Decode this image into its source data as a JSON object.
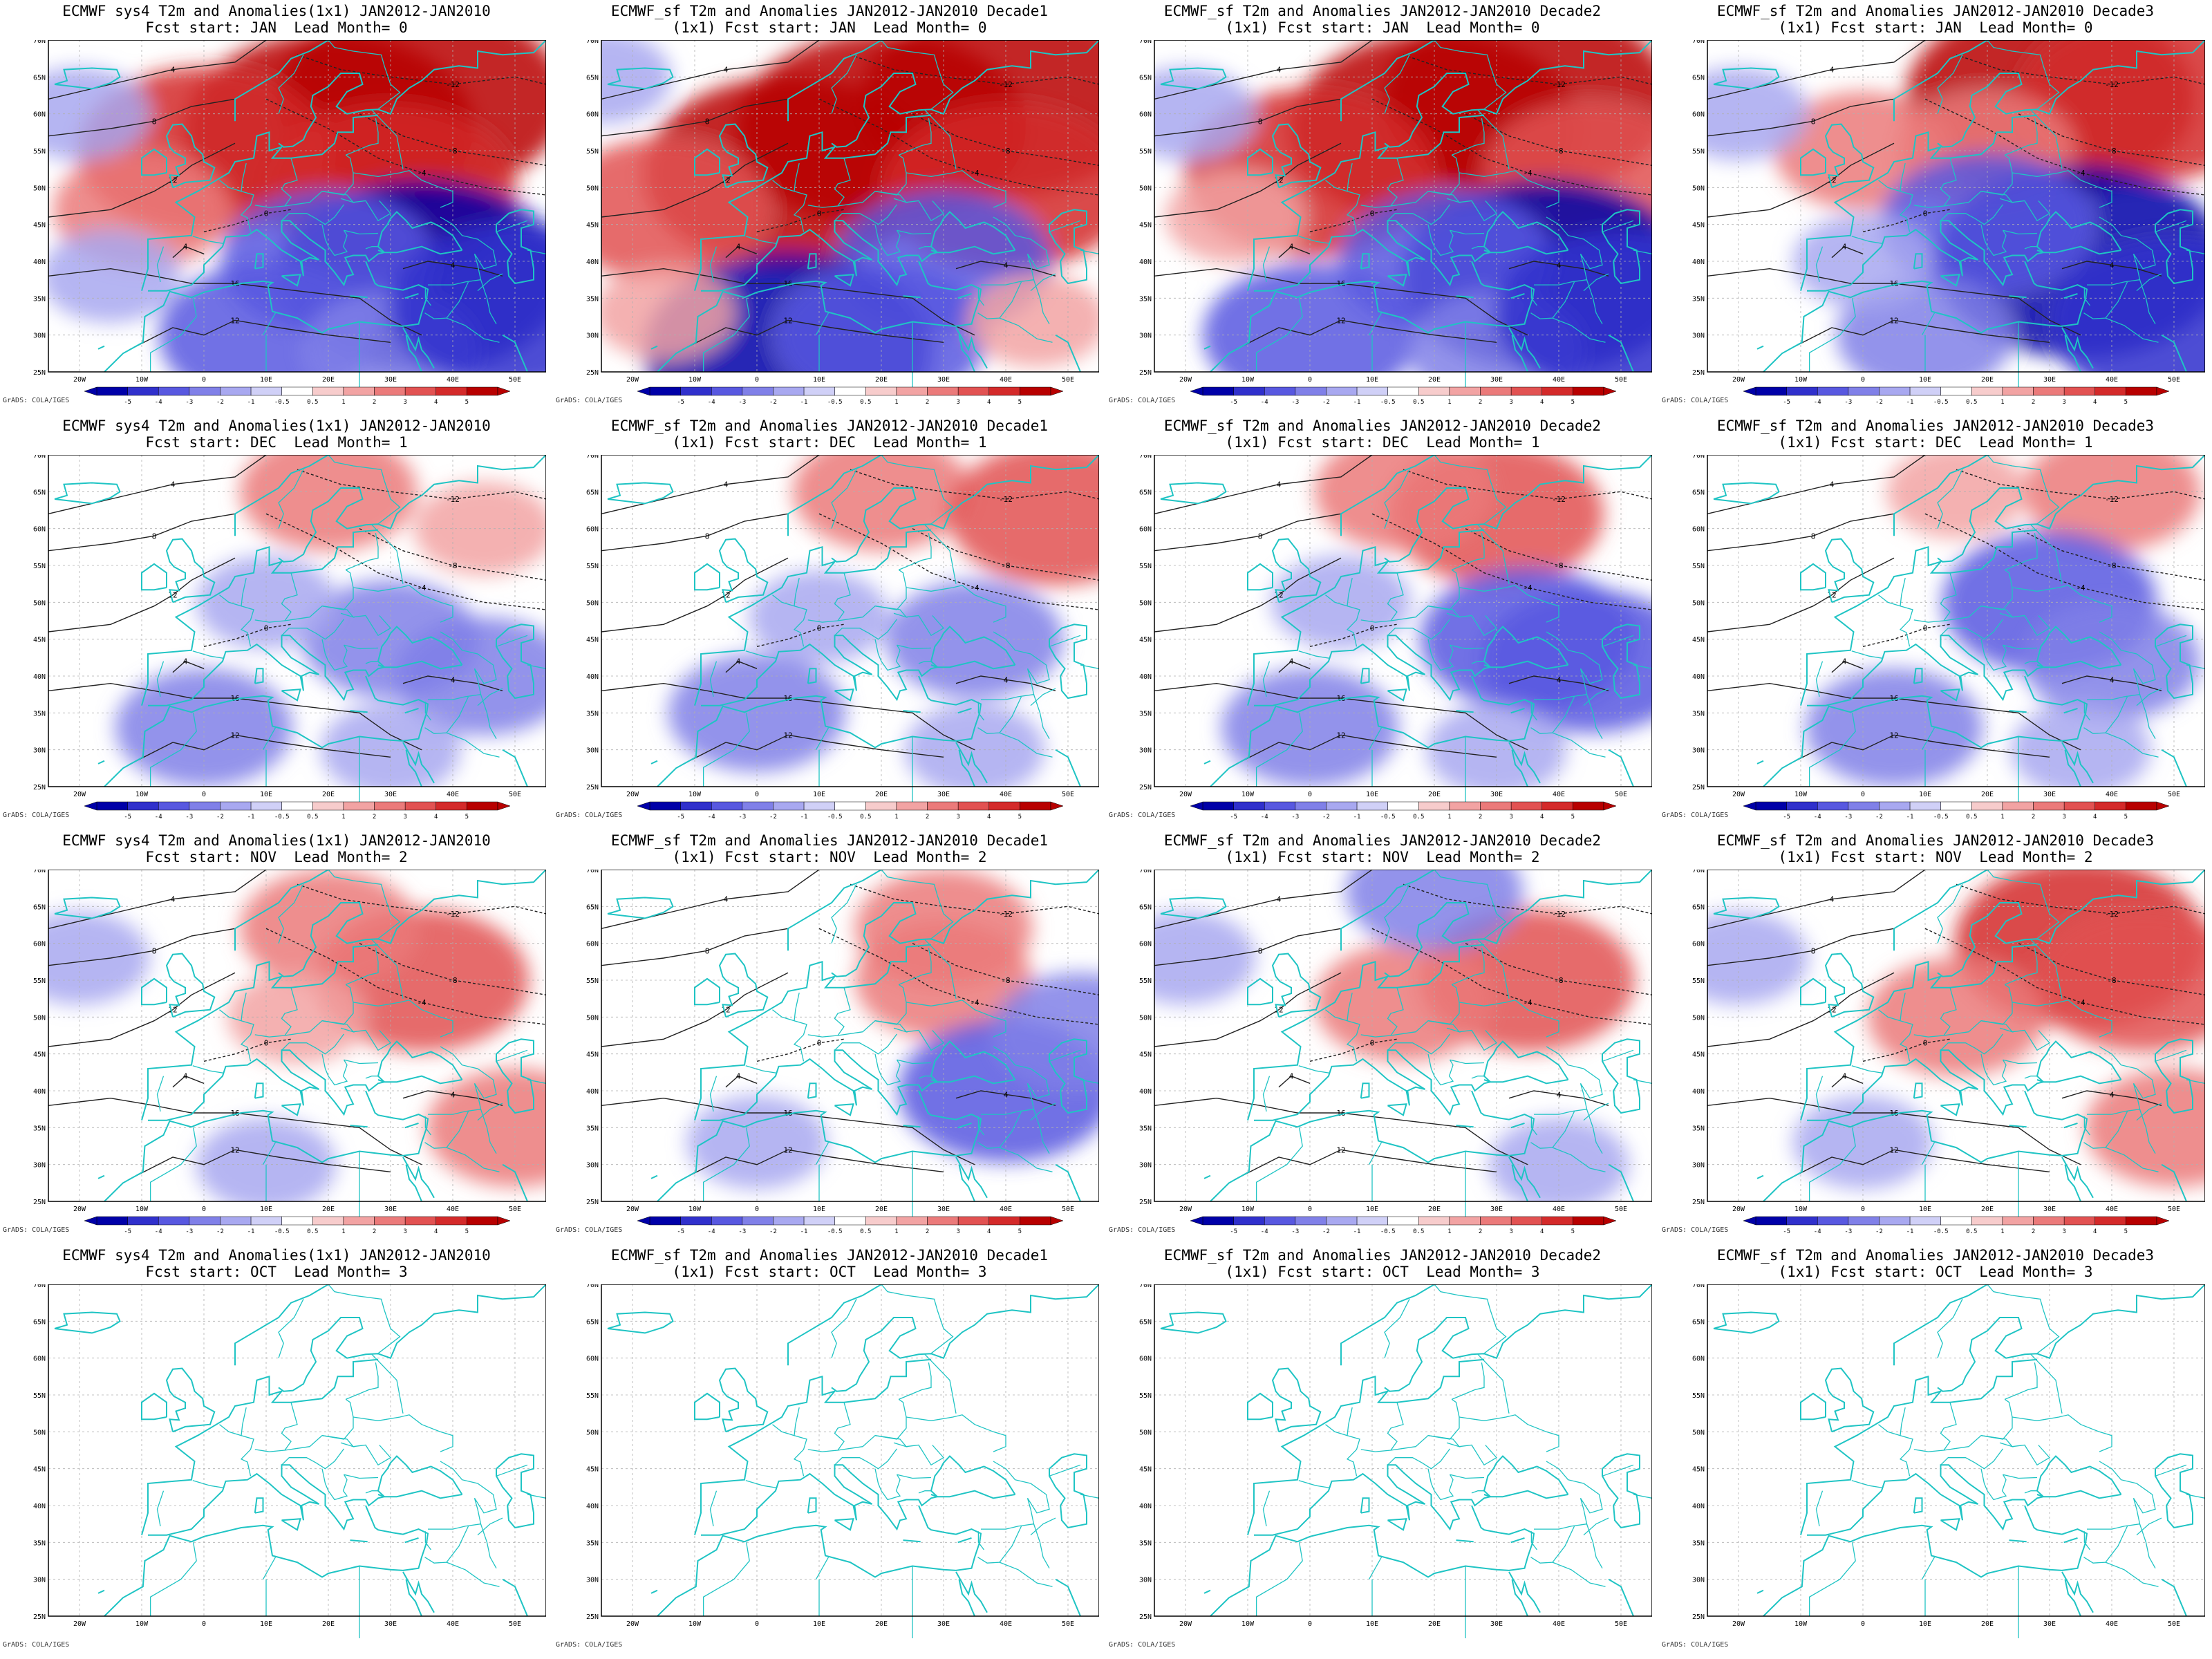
{
  "footer_text": "GrADS: COLA/IGES",
  "lat_labels": [
    "70N",
    "65N",
    "60N",
    "55N",
    "50N",
    "45N",
    "40N",
    "35N",
    "30N",
    "25N"
  ],
  "lon_labels": [
    "20W",
    "10W",
    "0",
    "10E",
    "20E",
    "30E",
    "40E",
    "50E"
  ],
  "colorbar_labels": [
    "-5",
    "-4",
    "-3",
    "-2",
    "-1",
    "-0.5",
    "0.5",
    "1",
    "2",
    "3",
    "4",
    "5"
  ],
  "colors": {
    "coast": "#1fc4c4",
    "contour": "#222222",
    "warm": [
      "#f7cccc",
      "#f2a3a3",
      "#eb7a7a",
      "#e25252",
      "#d42a2a",
      "#b80000"
    ],
    "cold": [
      "#d0d0f7",
      "#a8a8f0",
      "#8080e8",
      "#5858e0",
      "#3030cc",
      "#0000a8"
    ]
  },
  "columns": [
    {
      "line1": "ECMWF sys4 T2m and Anomalies(1x1) JAN2012-JAN2010",
      "line2_prefix": ""
    },
    {
      "line1": "ECMWF_sf T2m and Anomalies JAN2012-JAN2010 Decade1",
      "line2_prefix": "(1x1) "
    },
    {
      "line1": "ECMWF_sf T2m and Anomalies JAN2012-JAN2010 Decade2",
      "line2_prefix": "(1x1) "
    },
    {
      "line1": "ECMWF_sf T2m and Anomalies JAN2012-JAN2010 Decade3",
      "line2_prefix": "(1x1) "
    }
  ],
  "rows": [
    {
      "fcst_start": "JAN",
      "lead_month": "0",
      "has_data": true
    },
    {
      "fcst_start": "DEC",
      "lead_month": "1",
      "has_data": true
    },
    {
      "fcst_start": "NOV",
      "lead_month": "2",
      "has_data": true
    },
    {
      "fcst_start": "OCT",
      "lead_month": "3",
      "has_data": false
    }
  ],
  "panels": [
    {
      "line1": "ECMWF sys4 T2m and Anomalies(1x1) JAN2012-JAN2010",
      "line2": "Fcst start: JAN  Lead Month= 0",
      "anomalies": [
        {
          "lat": 58,
          "lon": 20,
          "v": 5
        },
        {
          "lat": 62,
          "lon": 35,
          "v": 5
        },
        {
          "lat": 55,
          "lon": 0,
          "v": 4
        },
        {
          "lat": 50,
          "lon": 30,
          "v": 4
        },
        {
          "lat": 47,
          "lon": -10,
          "v": 2
        },
        {
          "lat": 38,
          "lon": 35,
          "v": -5
        },
        {
          "lat": 40,
          "lon": 20,
          "v": -3
        },
        {
          "lat": 30,
          "lon": 10,
          "v": -3
        },
        {
          "lat": 28,
          "lon": 30,
          "v": -2
        },
        {
          "lat": 34,
          "lon": 50,
          "v": -4
        },
        {
          "lat": 38,
          "lon": -15,
          "v": -1
        },
        {
          "lat": 60,
          "lon": -20,
          "v": -1
        }
      ]
    },
    {
      "line1": "ECMWF_sf T2m and Anomalies JAN2012-JAN2010 Decade1",
      "line2": "(1x1) Fcst start: JAN  Lead Month= 0",
      "anomalies": [
        {
          "lat": 58,
          "lon": 20,
          "v": 5
        },
        {
          "lat": 62,
          "lon": 40,
          "v": 5
        },
        {
          "lat": 52,
          "lon": 5,
          "v": 5
        },
        {
          "lat": 47,
          "lon": -15,
          "v": 3
        },
        {
          "lat": 50,
          "lon": 40,
          "v": 4
        },
        {
          "lat": 40,
          "lon": 30,
          "v": -3
        },
        {
          "lat": 28,
          "lon": 5,
          "v": -5
        },
        {
          "lat": 30,
          "lon": 20,
          "v": -3
        },
        {
          "lat": 32,
          "lon": 45,
          "v": 1
        },
        {
          "lat": 33,
          "lon": -15,
          "v": 1
        },
        {
          "lat": 65,
          "lon": -25,
          "v": -1
        }
      ]
    },
    {
      "line1": "ECMWF_sf T2m and Anomalies JAN2012-JAN2010 Decade2",
      "line2": "(1x1) Fcst start: JAN  Lead Month= 0",
      "anomalies": [
        {
          "lat": 58,
          "lon": 20,
          "v": 5
        },
        {
          "lat": 62,
          "lon": 35,
          "v": 5
        },
        {
          "lat": 52,
          "lon": 0,
          "v": 4
        },
        {
          "lat": 52,
          "lon": 45,
          "v": 3
        },
        {
          "lat": 46,
          "lon": -12,
          "v": 1
        },
        {
          "lat": 38,
          "lon": 38,
          "v": -5
        },
        {
          "lat": 40,
          "lon": 22,
          "v": -3
        },
        {
          "lat": 30,
          "lon": 0,
          "v": -3
        },
        {
          "lat": 28,
          "lon": 30,
          "v": -2
        },
        {
          "lat": 33,
          "lon": 50,
          "v": -4
        },
        {
          "lat": 60,
          "lon": -20,
          "v": -1
        }
      ]
    },
    {
      "line1": "ECMWF_sf T2m and Anomalies JAN2012-JAN2010 Decade3",
      "line2": "(1x1) Fcst start: JAN  Lead Month= 0",
      "anomalies": [
        {
          "lat": 62,
          "lon": 30,
          "v": 5
        },
        {
          "lat": 62,
          "lon": 45,
          "v": 4
        },
        {
          "lat": 55,
          "lon": 0,
          "v": 2
        },
        {
          "lat": 55,
          "lon": 20,
          "v": 2
        },
        {
          "lat": 40,
          "lon": 35,
          "v": -5
        },
        {
          "lat": 45,
          "lon": 20,
          "v": -3
        },
        {
          "lat": 32,
          "lon": 50,
          "v": -4
        },
        {
          "lat": 30,
          "lon": 10,
          "v": -2
        },
        {
          "lat": 60,
          "lon": -20,
          "v": -1
        },
        {
          "lat": 40,
          "lon": 0,
          "v": -1
        }
      ]
    },
    {
      "line1": "ECMWF sys4 T2m and Anomalies(1x1) JAN2012-JAN2010",
      "line2": "Fcst start: DEC  Lead Month= 1",
      "anomalies": [
        {
          "lat": 65,
          "lon": 20,
          "v": 2
        },
        {
          "lat": 60,
          "lon": 45,
          "v": 1
        },
        {
          "lat": 45,
          "lon": 30,
          "v": -2
        },
        {
          "lat": 40,
          "lon": 45,
          "v": -2
        },
        {
          "lat": 33,
          "lon": 0,
          "v": -2
        },
        {
          "lat": 50,
          "lon": 10,
          "v": -1
        },
        {
          "lat": 30,
          "lon": 30,
          "v": -1
        }
      ]
    },
    {
      "line1": "ECMWF_sf T2m and Anomalies JAN2012-JAN2010 Decade1",
      "line2": "(1x1) Fcst start: DEC  Lead Month= 1",
      "anomalies": [
        {
          "lat": 65,
          "lon": 20,
          "v": 2
        },
        {
          "lat": 62,
          "lon": 48,
          "v": 3
        },
        {
          "lat": 45,
          "lon": 35,
          "v": -2
        },
        {
          "lat": 35,
          "lon": 0,
          "v": -2
        },
        {
          "lat": 48,
          "lon": 10,
          "v": -1
        },
        {
          "lat": 30,
          "lon": 35,
          "v": -1
        }
      ]
    },
    {
      "line1": "ECMWF_sf T2m and Anomalies JAN2012-JAN2010 Decade2",
      "line2": "(1x1) Fcst start: DEC  Lead Month= 1",
      "anomalies": [
        {
          "lat": 62,
          "lon": 30,
          "v": 3
        },
        {
          "lat": 65,
          "lon": 15,
          "v": 2
        },
        {
          "lat": 45,
          "lon": 35,
          "v": -3
        },
        {
          "lat": 42,
          "lon": 45,
          "v": -3
        },
        {
          "lat": 33,
          "lon": 0,
          "v": -2
        },
        {
          "lat": 50,
          "lon": 5,
          "v": -1
        },
        {
          "lat": 30,
          "lon": 30,
          "v": -1
        }
      ]
    },
    {
      "line1": "ECMWF_sf T2m and Anomalies JAN2012-JAN2010 Decade3",
      "line2": "(1x1) Fcst start: DEC  Lead Month= 1",
      "anomalies": [
        {
          "lat": 65,
          "lon": 40,
          "v": 2
        },
        {
          "lat": 65,
          "lon": 15,
          "v": 1
        },
        {
          "lat": 50,
          "lon": 30,
          "v": -3
        },
        {
          "lat": 42,
          "lon": 40,
          "v": -2
        },
        {
          "lat": 33,
          "lon": 5,
          "v": -2
        },
        {
          "lat": 30,
          "lon": 35,
          "v": -1
        }
      ]
    },
    {
      "line1": "ECMWF sys4 T2m and Anomalies(1x1) JAN2012-JAN2010",
      "line2": "Fcst start: NOV  Lead Month= 2",
      "anomalies": [
        {
          "lat": 55,
          "lon": 35,
          "v": 3
        },
        {
          "lat": 62,
          "lon": 20,
          "v": 2
        },
        {
          "lat": 50,
          "lon": 15,
          "v": 1
        },
        {
          "lat": 35,
          "lon": 50,
          "v": 2
        },
        {
          "lat": 30,
          "lon": 10,
          "v": -1
        },
        {
          "lat": 58,
          "lon": -20,
          "v": -1
        }
      ]
    },
    {
      "line1": "ECMWF_sf T2m and Anomalies JAN2012-JAN2010 Decade1",
      "line2": "(1x1) Fcst start: NOV  Lead Month= 2",
      "anomalies": [
        {
          "lat": 62,
          "lon": 30,
          "v": 2
        },
        {
          "lat": 55,
          "lon": 30,
          "v": 2
        },
        {
          "lat": 40,
          "lon": 40,
          "v": -3
        },
        {
          "lat": 48,
          "lon": 52,
          "v": -2
        },
        {
          "lat": 33,
          "lon": 0,
          "v": -1
        }
      ]
    },
    {
      "line1": "ECMWF_sf T2m and Anomalies JAN2012-JAN2010 Decade2",
      "line2": "(1x1) Fcst start: NOV  Lead Month= 2",
      "anomalies": [
        {
          "lat": 55,
          "lon": 35,
          "v": 3
        },
        {
          "lat": 52,
          "lon": 15,
          "v": 2
        },
        {
          "lat": 67,
          "lon": 20,
          "v": -2
        },
        {
          "lat": 30,
          "lon": 40,
          "v": -1
        },
        {
          "lat": 58,
          "lon": -20,
          "v": -1
        }
      ]
    },
    {
      "line1": "ECMWF_sf T2m and Anomalies JAN2012-JAN2010 Decade3",
      "line2": "(1x1) Fcst start: NOV  Lead Month= 2",
      "anomalies": [
        {
          "lat": 60,
          "lon": 35,
          "v": 4
        },
        {
          "lat": 55,
          "lon": 45,
          "v": 3
        },
        {
          "lat": 50,
          "lon": 15,
          "v": 2
        },
        {
          "lat": 35,
          "lon": 50,
          "v": 2
        },
        {
          "lat": 33,
          "lon": 0,
          "v": -1
        },
        {
          "lat": 58,
          "lon": -20,
          "v": -1
        }
      ]
    },
    {
      "line1": "ECMWF sys4 T2m and Anomalies(1x1) JAN2012-JAN2010",
      "line2": "Fcst start: OCT  Lead Month= 3",
      "anomalies": []
    },
    {
      "line1": "ECMWF_sf T2m and Anomalies JAN2012-JAN2010 Decade1",
      "line2": "(1x1) Fcst start: OCT  Lead Month= 3",
      "anomalies": []
    },
    {
      "line1": "ECMWF_sf T2m and Anomalies JAN2012-JAN2010 Decade2",
      "line2": "(1x1) Fcst start: OCT  Lead Month= 3",
      "anomalies": []
    },
    {
      "line1": "ECMWF_sf T2m and Anomalies JAN2012-JAN2010 Decade3",
      "line2": "(1x1) Fcst start: OCT  Lead Month= 3",
      "anomalies": []
    }
  ]
}
